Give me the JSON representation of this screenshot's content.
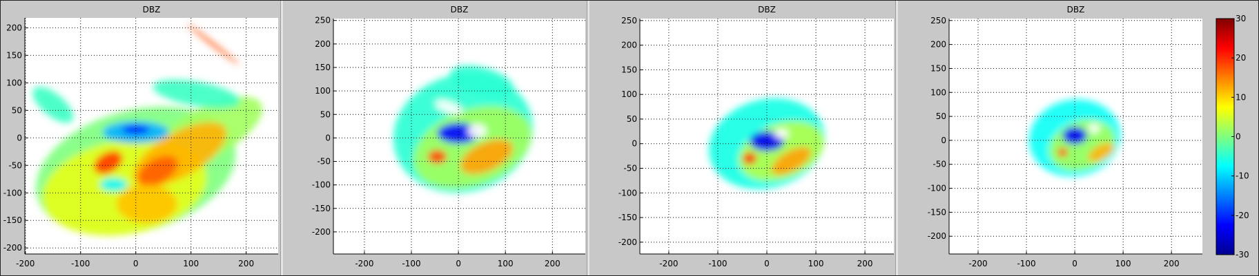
{
  "chart_data": {
    "type": "heatmap",
    "description_units": "km",
    "colorbar": {
      "label_ticks": [
        "30",
        "20",
        "10",
        "0",
        "-10",
        "-20",
        "-30"
      ],
      "range": [
        -30,
        30
      ],
      "colormap": "jet"
    },
    "panels": [
      {
        "title": "DBZ",
        "xlim": [
          -201,
          258
        ],
        "ylim": [
          -211,
          218
        ],
        "xticks": [
          -200,
          -100,
          0,
          100,
          200
        ],
        "yticks": [
          -200,
          -150,
          -100,
          -50,
          0,
          50,
          100,
          150,
          200
        ],
        "grid": true,
        "echoes": [
          {
            "x": 0,
            "y": -60,
            "rx": 185,
            "ry": 110,
            "rot": -15,
            "dbz": 0
          },
          {
            "x": 130,
            "y": 10,
            "rx": 110,
            "ry": 45,
            "rot": -28,
            "dbz": 2
          },
          {
            "x": -20,
            "y": -90,
            "rx": 150,
            "ry": 85,
            "rot": -10,
            "dbz": 6
          },
          {
            "x": 80,
            "y": -30,
            "rx": 95,
            "ry": 40,
            "rot": -30,
            "dbz": 12
          },
          {
            "x": 40,
            "y": -60,
            "rx": 40,
            "ry": 22,
            "rot": -30,
            "dbz": 17
          },
          {
            "x": 20,
            "y": -120,
            "rx": 55,
            "ry": 35,
            "rot": 0,
            "dbz": 11
          },
          {
            "x": -50,
            "y": -45,
            "rx": 28,
            "ry": 18,
            "rot": -30,
            "dbz": 19
          },
          {
            "x": -40,
            "y": -85,
            "rx": 25,
            "ry": 12,
            "rot": 0,
            "dbz": -8
          },
          {
            "x": 0,
            "y": 10,
            "rx": 60,
            "ry": 20,
            "rot": 0,
            "dbz": -12
          },
          {
            "x": 0,
            "y": 15,
            "rx": 25,
            "ry": 8,
            "rot": 0,
            "dbz": -22
          },
          {
            "x": 110,
            "y": 80,
            "rx": 80,
            "ry": 22,
            "rot": 10,
            "dbz": -4
          },
          {
            "x": -150,
            "y": 60,
            "rx": 45,
            "ry": 20,
            "rot": 40,
            "dbz": -4
          },
          {
            "x": 140,
            "y": 170,
            "rx": 60,
            "ry": 3,
            "rot": 38,
            "dbz": 18
          }
        ]
      },
      {
        "title": "DBZ",
        "xlim": [
          -266,
          270
        ],
        "ylim": [
          -247,
          254
        ],
        "xticks": [
          -200,
          -100,
          0,
          100,
          200
        ],
        "yticks": [
          -200,
          -150,
          -100,
          -50,
          0,
          50,
          100,
          150,
          200,
          250
        ],
        "grid": true,
        "echoes": [
          {
            "x": 10,
            "y": 10,
            "rx": 150,
            "ry": 125,
            "rot": -15,
            "dbz": -5
          },
          {
            "x": 30,
            "y": -20,
            "rx": 130,
            "ry": 80,
            "rot": -20,
            "dbz": 2
          },
          {
            "x": 50,
            "y": 120,
            "rx": 70,
            "ry": 30,
            "rot": 15,
            "dbz": -5
          },
          {
            "x": 60,
            "y": -40,
            "rx": 60,
            "ry": 30,
            "rot": -25,
            "dbz": 13
          },
          {
            "x": -45,
            "y": -40,
            "rx": 20,
            "ry": 15,
            "rot": 0,
            "dbz": 18
          },
          {
            "x": 0,
            "y": 10,
            "rx": 45,
            "ry": 22,
            "rot": 0,
            "dbz": -22
          },
          {
            "x": 40,
            "y": 15,
            "rx": 20,
            "ry": 15,
            "rot": 0,
            "dbz": -99
          },
          {
            "x": -20,
            "y": 65,
            "rx": 30,
            "ry": 12,
            "rot": 20,
            "dbz": -99
          }
        ]
      },
      {
        "title": "DBZ",
        "xlim": [
          -259,
          259
        ],
        "ylim": [
          -224,
          254
        ],
        "xticks": [
          -200,
          -100,
          0,
          100,
          200
        ],
        "yticks": [
          -200,
          -150,
          -100,
          -50,
          0,
          50,
          100,
          150,
          200,
          250
        ],
        "grid": true,
        "echoes": [
          {
            "x": 0,
            "y": 0,
            "rx": 120,
            "ry": 90,
            "rot": -15,
            "dbz": -6
          },
          {
            "x": 30,
            "y": -15,
            "rx": 90,
            "ry": 55,
            "rot": -20,
            "dbz": 3
          },
          {
            "x": 50,
            "y": -35,
            "rx": 45,
            "ry": 20,
            "rot": -30,
            "dbz": 13
          },
          {
            "x": -35,
            "y": -30,
            "rx": 14,
            "ry": 12,
            "rot": 0,
            "dbz": 20
          },
          {
            "x": 0,
            "y": 5,
            "rx": 35,
            "ry": 20,
            "rot": 0,
            "dbz": -23
          },
          {
            "x": 30,
            "y": 20,
            "rx": 15,
            "ry": 10,
            "rot": 0,
            "dbz": -99
          }
        ]
      },
      {
        "title": "DBZ",
        "xlim": [
          -260,
          264
        ],
        "ylim": [
          -237,
          254
        ],
        "xticks": [
          -200,
          -100,
          0,
          100,
          200
        ],
        "yticks": [
          -200,
          -150,
          -100,
          -50,
          0,
          50,
          100,
          150,
          200,
          250
        ],
        "grid": true,
        "echoes": [
          {
            "x": 0,
            "y": 5,
            "rx": 95,
            "ry": 80,
            "rot": -10,
            "dbz": -7
          },
          {
            "x": 15,
            "y": -10,
            "rx": 70,
            "ry": 50,
            "rot": -20,
            "dbz": 2
          },
          {
            "x": 55,
            "y": -25,
            "rx": 30,
            "ry": 15,
            "rot": -30,
            "dbz": 12
          },
          {
            "x": -25,
            "y": -25,
            "rx": 10,
            "ry": 10,
            "rot": 0,
            "dbz": 18
          },
          {
            "x": 0,
            "y": 10,
            "rx": 25,
            "ry": 18,
            "rot": 0,
            "dbz": -23
          },
          {
            "x": 40,
            "y": 25,
            "rx": 12,
            "ry": 10,
            "rot": 0,
            "dbz": -99
          }
        ]
      }
    ]
  }
}
